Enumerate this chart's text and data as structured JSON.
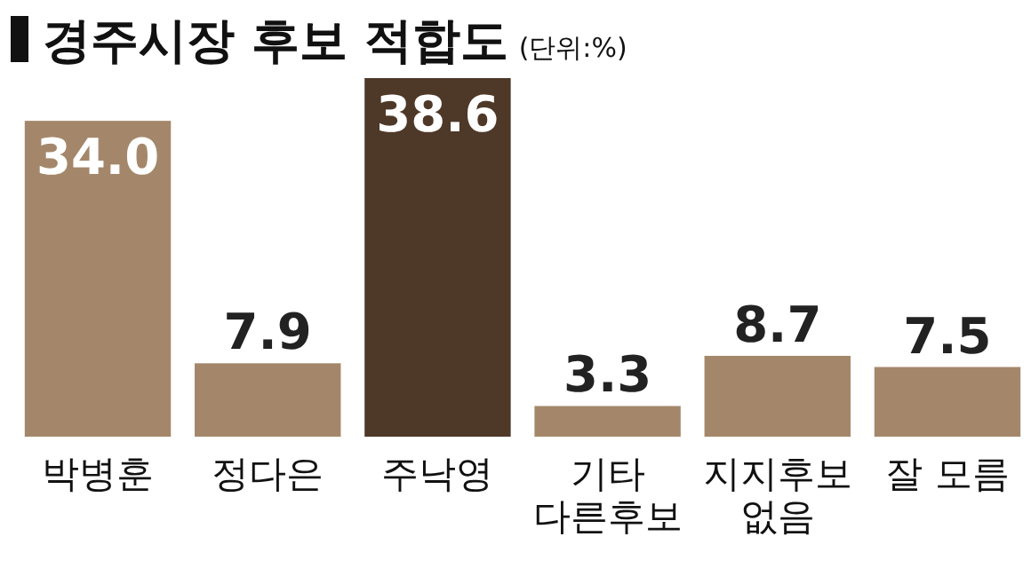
{
  "chart_data": {
    "type": "bar",
    "title": "경주시장 후보 적합도",
    "subtitle": "(단위:%)",
    "categories": [
      "박병훈",
      "정다은",
      "주낙영",
      "기타\n다른후보",
      "지지후보\n없음",
      "잘 모름"
    ],
    "values": [
      34.0,
      7.9,
      38.6,
      3.3,
      8.7,
      7.5
    ],
    "colors": [
      "#a4876a",
      "#a4876a",
      "#4e3828",
      "#a4876a",
      "#a4876a",
      "#a4876a"
    ],
    "value_labels": [
      "34.0",
      "7.9",
      "38.6",
      "3.3",
      "8.7",
      "7.5"
    ]
  }
}
